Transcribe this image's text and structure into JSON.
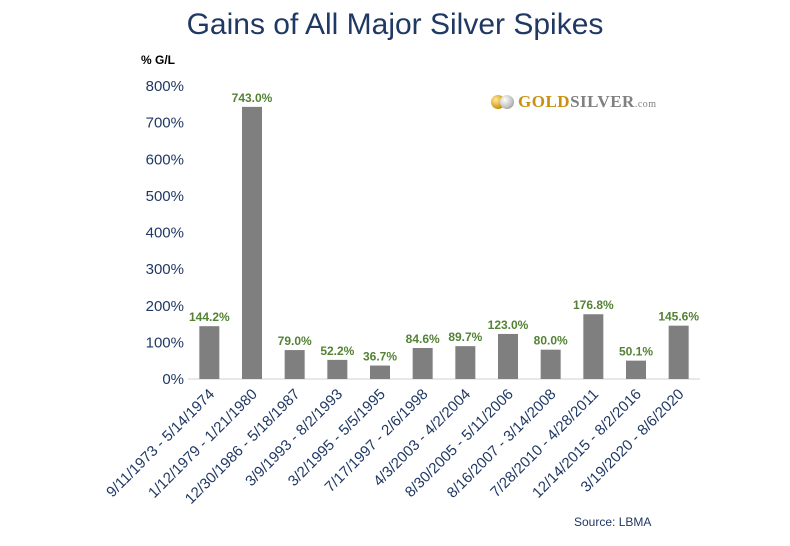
{
  "chart_data": {
    "type": "bar",
    "title": "Gains of All Major Silver Spikes",
    "ylabel": "% G/L",
    "xlabel": "",
    "ylim": [
      0,
      800
    ],
    "yticks": [
      "0%",
      "100%",
      "200%",
      "300%",
      "400%",
      "500%",
      "600%",
      "700%",
      "800%"
    ],
    "grid": false,
    "categories": [
      "9/11/1973 - 5/14/1974",
      "1/12/1979 - 1/21/1980",
      "12/30/1986 - 5/18/1987",
      "3/9/1993 - 8/2/1993",
      "3/2/1995 - 5/5/1995",
      "7/17/1997 - 2/6/1998",
      "4/3/2003 - 4/2/2004",
      "8/30/2005 - 5/11/2006",
      "8/16/2007 - 3/14/2008",
      "7/28/2010 - 4/28/2011",
      "12/14/2015 - 8/2/2016",
      "3/19/2020 - 8/6/2020"
    ],
    "values": [
      144.2,
      743.0,
      79.0,
      52.2,
      36.7,
      84.6,
      89.7,
      123.0,
      80.0,
      176.8,
      50.1,
      145.6
    ],
    "data_labels": [
      "144.2%",
      "743.0%",
      "79.0%",
      "52.2%",
      "36.7%",
      "84.6%",
      "89.7%",
      "123.0%",
      "80.0%",
      "176.8%",
      "50.1%",
      "145.6%"
    ],
    "bar_color": "#7f7f7f",
    "label_color": "#548235",
    "axis_text_color": "#1f3864"
  },
  "logo": {
    "gold_text": "GOLD",
    "silver_text": "SILVER",
    "com_text": ".com"
  },
  "source": "Source: LBMA"
}
